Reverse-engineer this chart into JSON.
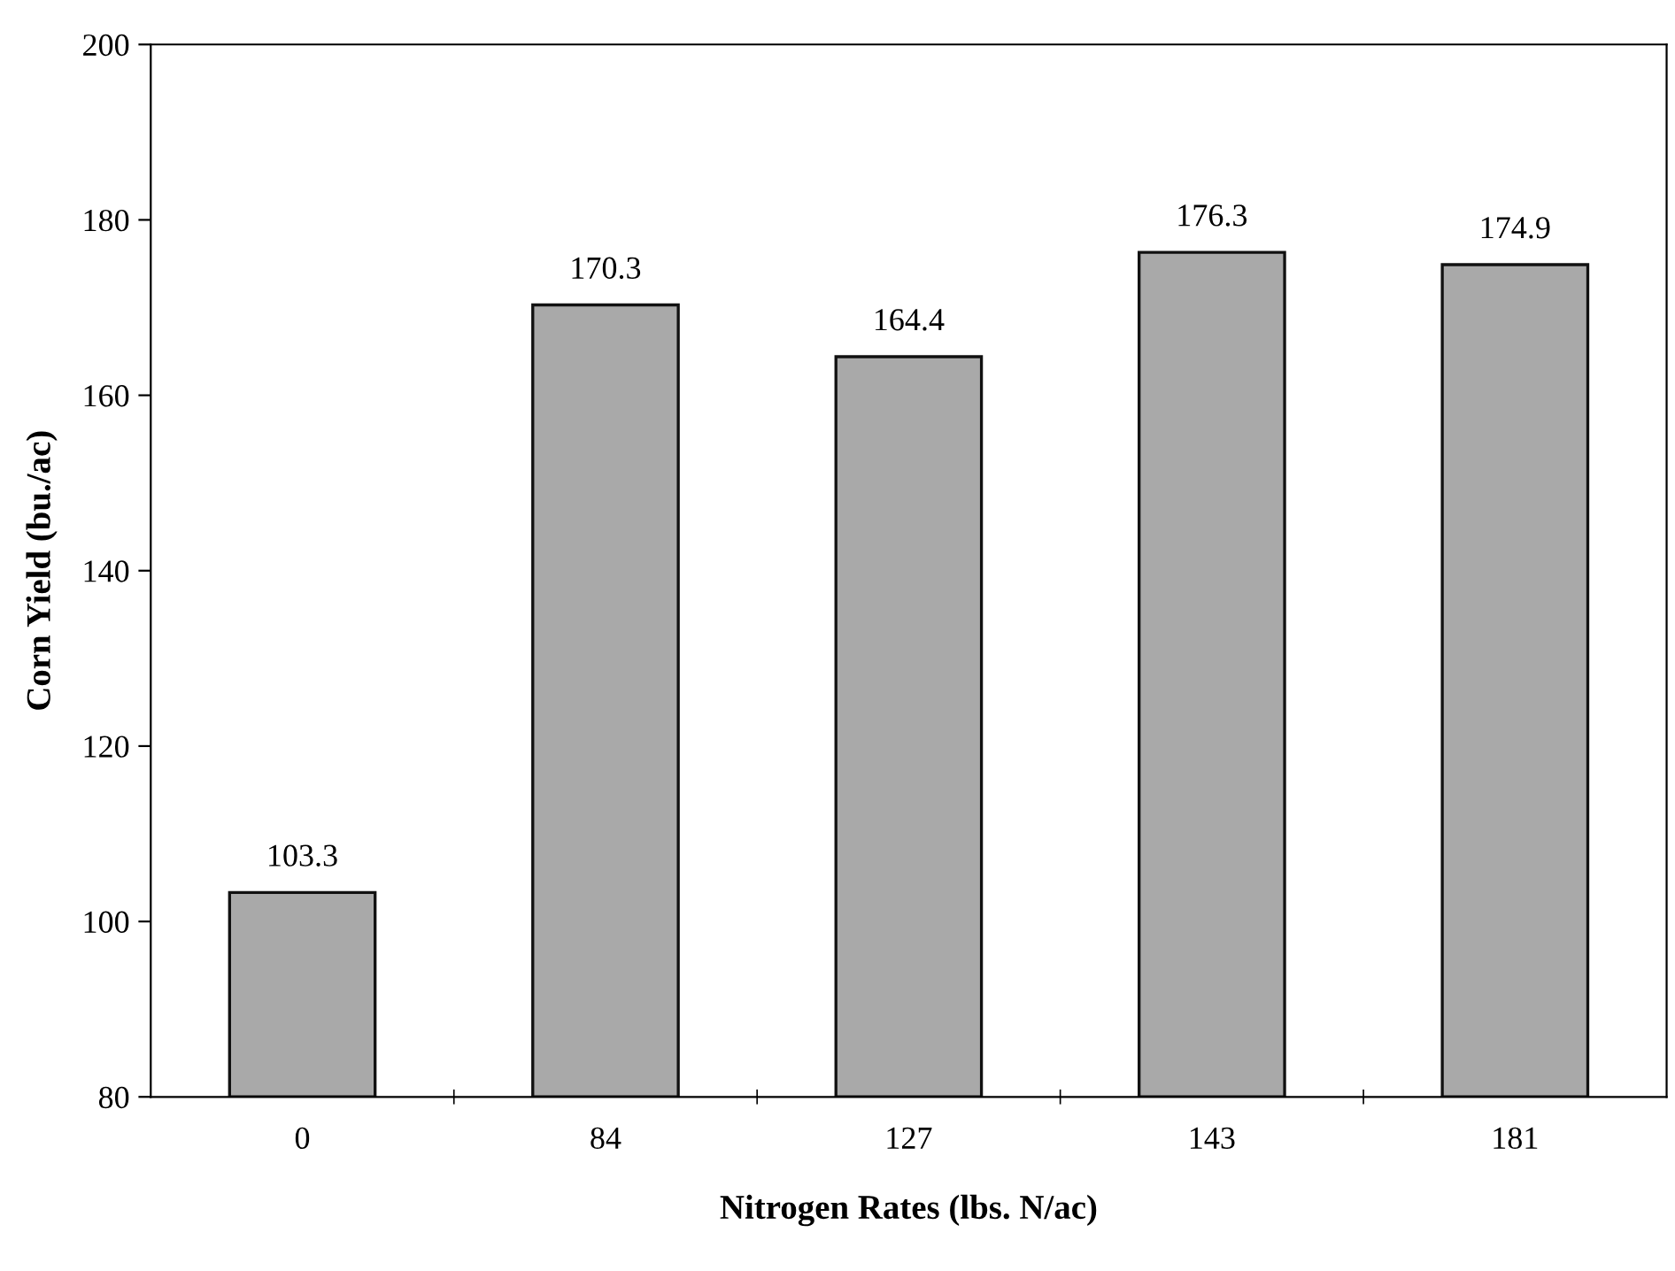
{
  "chart_data": {
    "type": "bar",
    "xlabel": "Nitrogen Rates (lbs. N/ac)",
    "ylabel": "Corn Yield (bu./ac)",
    "categories": [
      "0",
      "84",
      "127",
      "143",
      "181"
    ],
    "values": [
      103.3,
      170.3,
      164.4,
      176.3,
      174.9
    ],
    "color": "#a9a9a9",
    "ylim": [
      80,
      200
    ],
    "yticks": [
      80,
      100,
      120,
      140,
      160,
      180,
      200
    ],
    "grid": false,
    "legend": false,
    "data_labels": true
  }
}
